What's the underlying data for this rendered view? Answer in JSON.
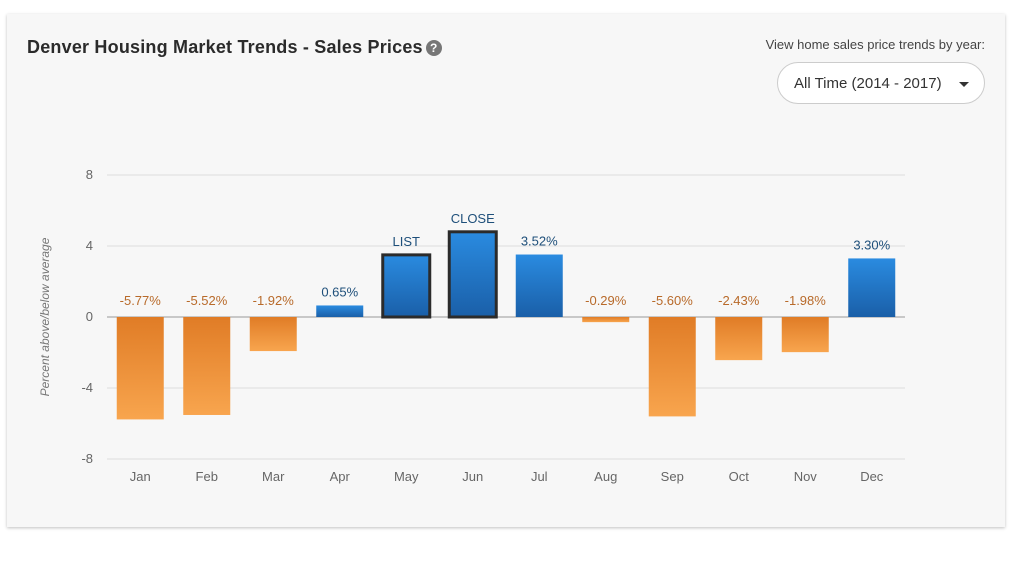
{
  "header": {
    "title": "Denver Housing Market Trends - Sales Prices",
    "help_icon": "question-circle-icon"
  },
  "year_picker": {
    "label": "View home sales price trends by year:",
    "selected": "All Time (2014 - 2017)",
    "caret_icon": "caret-down-icon"
  },
  "chart_data": {
    "type": "bar",
    "title": "Denver Housing Market Trends - Sales Prices",
    "ylabel": "Percent above/below average",
    "xlabel": "",
    "ylim": [
      -8,
      8
    ],
    "yticks": [
      -8,
      -4,
      0,
      4,
      8
    ],
    "grid": true,
    "categories": [
      "Jan",
      "Feb",
      "Mar",
      "Apr",
      "May",
      "Jun",
      "Jul",
      "Aug",
      "Sep",
      "Oct",
      "Nov",
      "Dec"
    ],
    "values": [
      -5.77,
      -5.52,
      -1.92,
      0.65,
      3.5,
      4.8,
      3.52,
      -0.29,
      -5.6,
      -2.43,
      -1.98,
      3.3
    ],
    "labels": [
      "-5.77%",
      "-5.52%",
      "-1.92%",
      "0.65%",
      "LIST",
      "CLOSE",
      "3.52%",
      "-0.29%",
      "-5.60%",
      "-2.43%",
      "-1.98%",
      "3.30%"
    ],
    "highlighted": [
      "May",
      "Jun"
    ],
    "colors": {
      "positive_top": "#2a8be0",
      "positive_bottom": "#1a5fa8",
      "negative_top": "#e07c26",
      "negative_bottom": "#f8a54e",
      "positive_label": "#1e4f7a",
      "negative_label": "#b86a2a",
      "highlight_border": "#2b2b2b",
      "grid": "#dddddd",
      "zero_line": "#999999"
    }
  }
}
